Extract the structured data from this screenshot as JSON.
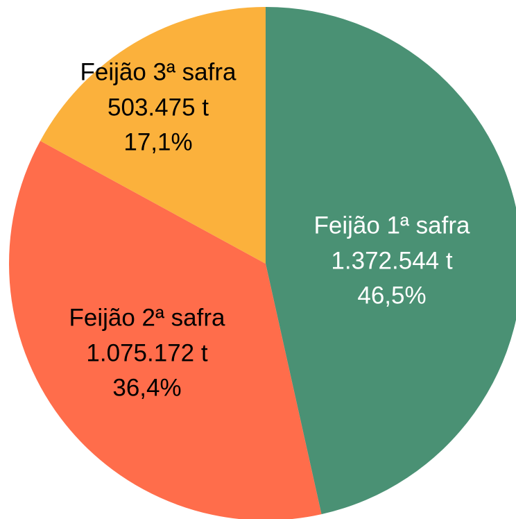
{
  "chart_data": {
    "type": "pie",
    "categories": [
      "Feijão 1ª safra",
      "Feijão 2ª safra",
      "Feijão 3ª safra"
    ],
    "values": [
      1372544,
      1075172,
      503475
    ],
    "value_labels": [
      "1.372.544 t",
      "1.075.172 t",
      "503.475 t"
    ],
    "percentages": [
      46.5,
      36.4,
      17.1
    ],
    "percentage_labels": [
      "46,5%",
      "36,4%",
      "17,1%"
    ],
    "colors": [
      "#4a9174",
      "#ff6d4b",
      "#fbb13c"
    ],
    "label_colors": [
      "#ffffff",
      "#000000",
      "#000000"
    ]
  }
}
